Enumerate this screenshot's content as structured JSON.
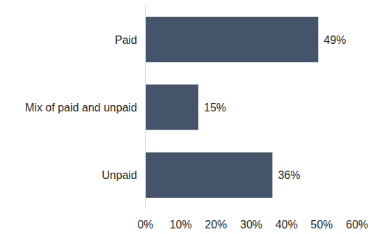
{
  "chart_data": {
    "type": "bar",
    "orientation": "horizontal",
    "categories": [
      "Paid",
      "Mix of paid and unpaid",
      "Unpaid"
    ],
    "values": [
      49,
      15,
      36
    ],
    "value_labels": [
      "49%",
      "15%",
      "36%"
    ],
    "color": "#44546a",
    "xlim": [
      0,
      60
    ],
    "xticks": [
      {
        "value": 0,
        "label": "0%"
      },
      {
        "value": 10,
        "label": "10%"
      },
      {
        "value": 20,
        "label": "20%"
      },
      {
        "value": 30,
        "label": "30%"
      },
      {
        "value": 40,
        "label": "40%"
      },
      {
        "value": 50,
        "label": "50%"
      },
      {
        "value": 60,
        "label": "60%"
      }
    ],
    "grid": false,
    "data_labels": true
  }
}
